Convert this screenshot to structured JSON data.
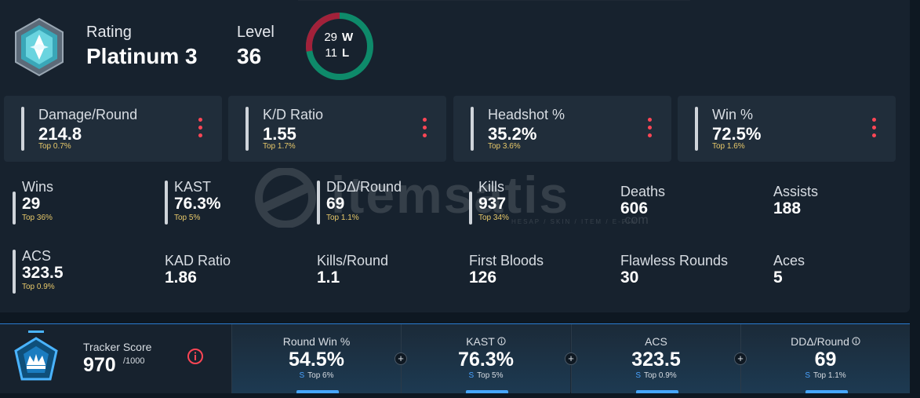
{
  "header": {
    "rating_label": "Rating",
    "rating_value": "Platinum 3",
    "level_label": "Level",
    "level_value": "36",
    "wins": "29",
    "wins_letter": "W",
    "losses": "11",
    "losses_letter": "L",
    "win_color": "#0e8a6a",
    "loss_color": "#a2213a"
  },
  "cards": [
    {
      "label": "Damage/Round",
      "value": "214.8",
      "top": "Top 0.7%"
    },
    {
      "label": "K/D Ratio",
      "value": "1.55",
      "top": "Top 1.7%"
    },
    {
      "label": "Headshot %",
      "value": "35.2%",
      "top": "Top 3.6%"
    },
    {
      "label": "Win %",
      "value": "72.5%",
      "top": "Top 1.6%"
    }
  ],
  "stats_row1": [
    {
      "label": "Wins",
      "value": "29",
      "top": "Top 36%"
    },
    {
      "label": "KAST",
      "value": "76.3%",
      "top": "Top 5%"
    },
    {
      "label": "DDΔ/Round",
      "value": "69",
      "top": "Top 1.1%"
    },
    {
      "label": "Kills",
      "value": "937",
      "top": "Top 34%"
    },
    {
      "label": "Deaths",
      "value": "606"
    },
    {
      "label": "Assists",
      "value": "188"
    }
  ],
  "stats_row2": [
    {
      "label": "ACS",
      "value": "323.5",
      "top": "Top 0.9%"
    },
    {
      "label": "KAD Ratio",
      "value": "1.86"
    },
    {
      "label": "Kills/Round",
      "value": "1.1"
    },
    {
      "label": "First Bloods",
      "value": "126"
    },
    {
      "label": "Flawless Rounds",
      "value": "30"
    },
    {
      "label": "Aces",
      "value": "5"
    }
  ],
  "watermark": {
    "text": "itemsatis",
    "sub": "HESAP / SKIN / ITEM / E-PIN",
    "com": ".com"
  },
  "tracker": {
    "label": "Tracker Score",
    "value": "970",
    "max": "/1000",
    "cells": [
      {
        "label": "Round Win %",
        "value": "54.5%",
        "s": "S",
        "top": "Top 6%"
      },
      {
        "label": "KAST",
        "value": "76.3%",
        "s": "S",
        "top": "Top 5%"
      },
      {
        "label": "ACS",
        "value": "323.5",
        "s": "S",
        "top": "Top 0.9%"
      },
      {
        "label": "DDΔ/Round",
        "value": "69",
        "s": "S",
        "top": "Top 1.1%"
      }
    ]
  },
  "icons": {
    "rank": "platinum-rank-icon",
    "tracker": "tracker-crown-icon",
    "info": "info-icon",
    "more": "more-vertical-icon",
    "plus": "plus-icon"
  }
}
